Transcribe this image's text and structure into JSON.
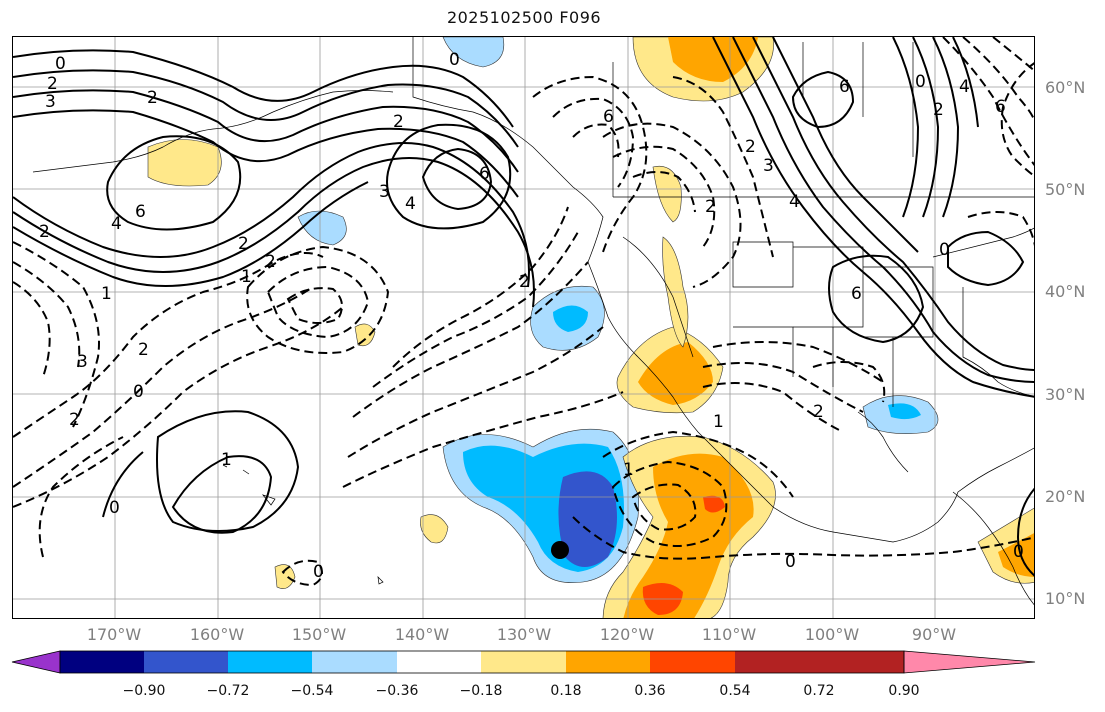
{
  "title": "2025102500 F096",
  "lat_labels": [
    "60°N",
    "50°N",
    "40°N",
    "30°N",
    "20°N",
    "10°N"
  ],
  "lon_labels": [
    "170°W",
    "160°W",
    "150°W",
    "140°W",
    "130°W",
    "120°W",
    "110°W",
    "100°W",
    "90°W"
  ],
  "contour_labels": [
    "0",
    "2",
    "3",
    "2",
    "6",
    "4",
    "2",
    "3",
    "4",
    "6",
    "0",
    "2",
    "1",
    "2",
    "1",
    "3",
    "2",
    "0",
    "2",
    "1",
    "0",
    "2",
    "6",
    "2",
    "3",
    "4",
    "6",
    "0",
    "2",
    "4",
    "6",
    "0",
    "2",
    "1",
    "0",
    "0",
    "2",
    "2",
    "1",
    "0",
    "6"
  ],
  "colorbar": {
    "ticks": [
      "−0.90",
      "−0.72",
      "−0.54",
      "−0.36",
      "−0.18",
      "0.18",
      "0.36",
      "0.54",
      "0.72",
      "0.90"
    ],
    "colors": [
      "#9933cc",
      "#000080",
      "#3355cc",
      "#00bbff",
      "#aadcff",
      "#ffffff",
      "#ffe88a",
      "#ffa500",
      "#ff4500",
      "#b22222",
      "#ff88aa"
    ]
  },
  "marker": "storm-position-dot"
}
